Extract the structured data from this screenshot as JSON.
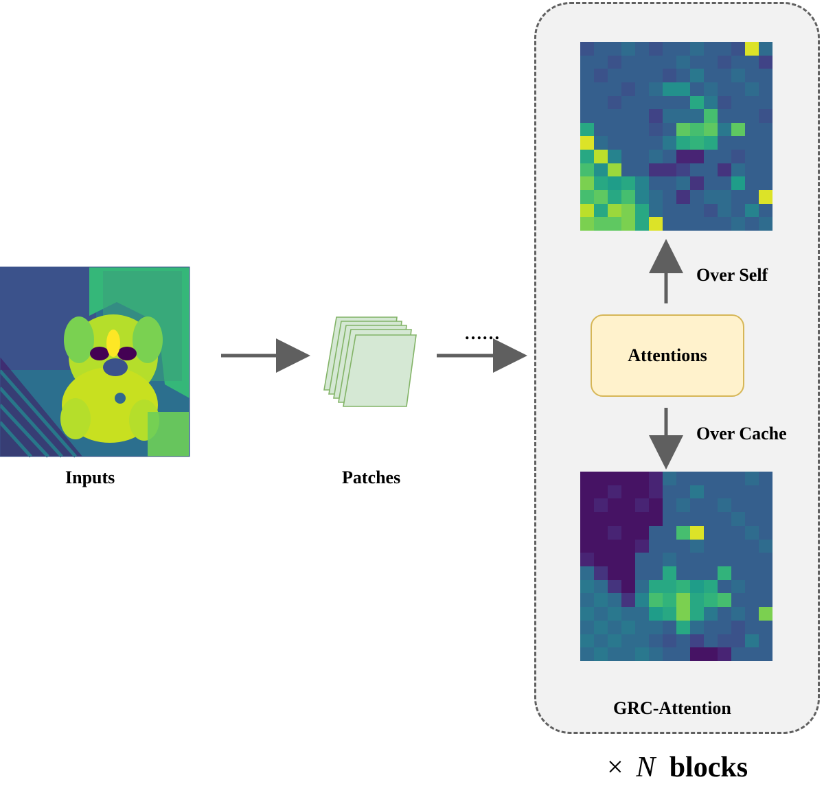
{
  "labels": {
    "inputs": "Inputs",
    "patches": "Patches",
    "ellipsis": "……",
    "attentions": "Attentions",
    "over_self": "Over Self",
    "over_cache": "Over Cache",
    "grc_attention": "GRC-Attention",
    "times_symbol": "×",
    "n_symbol": "N",
    "blocks": "blocks"
  },
  "colors": {
    "arrow": "#5f5f5f",
    "box_border": "#606060",
    "box_fill": "#f2f2f2",
    "attn_fill": "#fff2cc",
    "attn_border": "#d6b656",
    "patch_border": "#82b366",
    "patch_fill": "#d5e8d4"
  },
  "icons": {
    "input_image": "viridis-dog-photo",
    "patches": "stacked-patch-cards"
  },
  "heatmap_self": {
    "colormap": "viridis",
    "rows": 14,
    "cols": 14,
    "values": [
      [
        0.25,
        0.3,
        0.3,
        0.35,
        0.3,
        0.25,
        0.3,
        0.3,
        0.35,
        0.3,
        0.3,
        0.25,
        0.95,
        0.35
      ],
      [
        0.3,
        0.3,
        0.25,
        0.3,
        0.3,
        0.3,
        0.3,
        0.35,
        0.3,
        0.3,
        0.25,
        0.3,
        0.3,
        0.2
      ],
      [
        0.3,
        0.25,
        0.3,
        0.3,
        0.3,
        0.3,
        0.25,
        0.3,
        0.4,
        0.3,
        0.3,
        0.35,
        0.3,
        0.3
      ],
      [
        0.3,
        0.3,
        0.3,
        0.25,
        0.3,
        0.35,
        0.5,
        0.5,
        0.3,
        0.35,
        0.3,
        0.3,
        0.35,
        0.3
      ],
      [
        0.3,
        0.3,
        0.25,
        0.3,
        0.3,
        0.3,
        0.3,
        0.3,
        0.6,
        0.4,
        0.25,
        0.3,
        0.3,
        0.3
      ],
      [
        0.3,
        0.3,
        0.3,
        0.3,
        0.3,
        0.2,
        0.35,
        0.35,
        0.35,
        0.7,
        0.3,
        0.3,
        0.3,
        0.25
      ],
      [
        0.6,
        0.3,
        0.3,
        0.3,
        0.3,
        0.25,
        0.3,
        0.75,
        0.7,
        0.75,
        0.4,
        0.75,
        0.3,
        0.3
      ],
      [
        0.95,
        0.35,
        0.3,
        0.3,
        0.3,
        0.3,
        0.4,
        0.6,
        0.65,
        0.6,
        0.3,
        0.3,
        0.3,
        0.3
      ],
      [
        0.6,
        0.9,
        0.45,
        0.3,
        0.3,
        0.35,
        0.3,
        0.1,
        0.1,
        0.3,
        0.3,
        0.25,
        0.3,
        0.3
      ],
      [
        0.7,
        0.5,
        0.85,
        0.3,
        0.3,
        0.15,
        0.15,
        0.2,
        0.3,
        0.3,
        0.15,
        0.35,
        0.3,
        0.3
      ],
      [
        0.8,
        0.6,
        0.55,
        0.6,
        0.45,
        0.3,
        0.3,
        0.35,
        0.15,
        0.3,
        0.3,
        0.55,
        0.3,
        0.3
      ],
      [
        0.7,
        0.75,
        0.6,
        0.7,
        0.45,
        0.35,
        0.3,
        0.15,
        0.3,
        0.35,
        0.35,
        0.3,
        0.3,
        0.95
      ],
      [
        0.9,
        0.6,
        0.85,
        0.8,
        0.6,
        0.35,
        0.3,
        0.3,
        0.3,
        0.25,
        0.35,
        0.3,
        0.45,
        0.3
      ],
      [
        0.8,
        0.75,
        0.75,
        0.8,
        0.6,
        0.95,
        0.3,
        0.3,
        0.3,
        0.3,
        0.3,
        0.35,
        0.3,
        0.35
      ]
    ]
  },
  "heatmap_cache": {
    "colormap": "viridis",
    "rows": 14,
    "cols": 14,
    "values": [
      [
        0.05,
        0.05,
        0.05,
        0.05,
        0.05,
        0.1,
        0.35,
        0.3,
        0.3,
        0.3,
        0.3,
        0.3,
        0.35,
        0.3
      ],
      [
        0.05,
        0.05,
        0.1,
        0.05,
        0.05,
        0.1,
        0.3,
        0.3,
        0.4,
        0.3,
        0.3,
        0.3,
        0.3,
        0.3
      ],
      [
        0.05,
        0.1,
        0.05,
        0.05,
        0.1,
        0.05,
        0.3,
        0.35,
        0.3,
        0.3,
        0.35,
        0.3,
        0.3,
        0.3
      ],
      [
        0.05,
        0.05,
        0.05,
        0.05,
        0.05,
        0.05,
        0.3,
        0.3,
        0.3,
        0.3,
        0.3,
        0.35,
        0.3,
        0.3
      ],
      [
        0.05,
        0.05,
        0.1,
        0.05,
        0.05,
        0.3,
        0.3,
        0.7,
        0.95,
        0.3,
        0.3,
        0.3,
        0.35,
        0.3
      ],
      [
        0.05,
        0.05,
        0.05,
        0.05,
        0.1,
        0.3,
        0.3,
        0.3,
        0.35,
        0.3,
        0.3,
        0.3,
        0.3,
        0.35
      ],
      [
        0.1,
        0.05,
        0.05,
        0.05,
        0.3,
        0.3,
        0.35,
        0.3,
        0.3,
        0.3,
        0.3,
        0.3,
        0.3,
        0.3
      ],
      [
        0.35,
        0.15,
        0.05,
        0.05,
        0.3,
        0.3,
        0.6,
        0.3,
        0.3,
        0.3,
        0.65,
        0.3,
        0.3,
        0.3
      ],
      [
        0.4,
        0.35,
        0.15,
        0.05,
        0.35,
        0.6,
        0.6,
        0.65,
        0.55,
        0.6,
        0.3,
        0.35,
        0.3,
        0.3
      ],
      [
        0.35,
        0.4,
        0.35,
        0.15,
        0.45,
        0.7,
        0.65,
        0.8,
        0.6,
        0.65,
        0.7,
        0.3,
        0.3,
        0.3
      ],
      [
        0.4,
        0.35,
        0.4,
        0.35,
        0.35,
        0.55,
        0.6,
        0.8,
        0.6,
        0.4,
        0.3,
        0.35,
        0.3,
        0.8
      ],
      [
        0.35,
        0.4,
        0.35,
        0.4,
        0.35,
        0.35,
        0.3,
        0.6,
        0.35,
        0.3,
        0.3,
        0.25,
        0.3,
        0.3
      ],
      [
        0.4,
        0.35,
        0.4,
        0.35,
        0.35,
        0.3,
        0.25,
        0.3,
        0.2,
        0.3,
        0.25,
        0.25,
        0.4,
        0.3
      ],
      [
        0.35,
        0.4,
        0.35,
        0.35,
        0.4,
        0.35,
        0.3,
        0.3,
        0.05,
        0.05,
        0.1,
        0.3,
        0.3,
        0.3
      ]
    ]
  }
}
